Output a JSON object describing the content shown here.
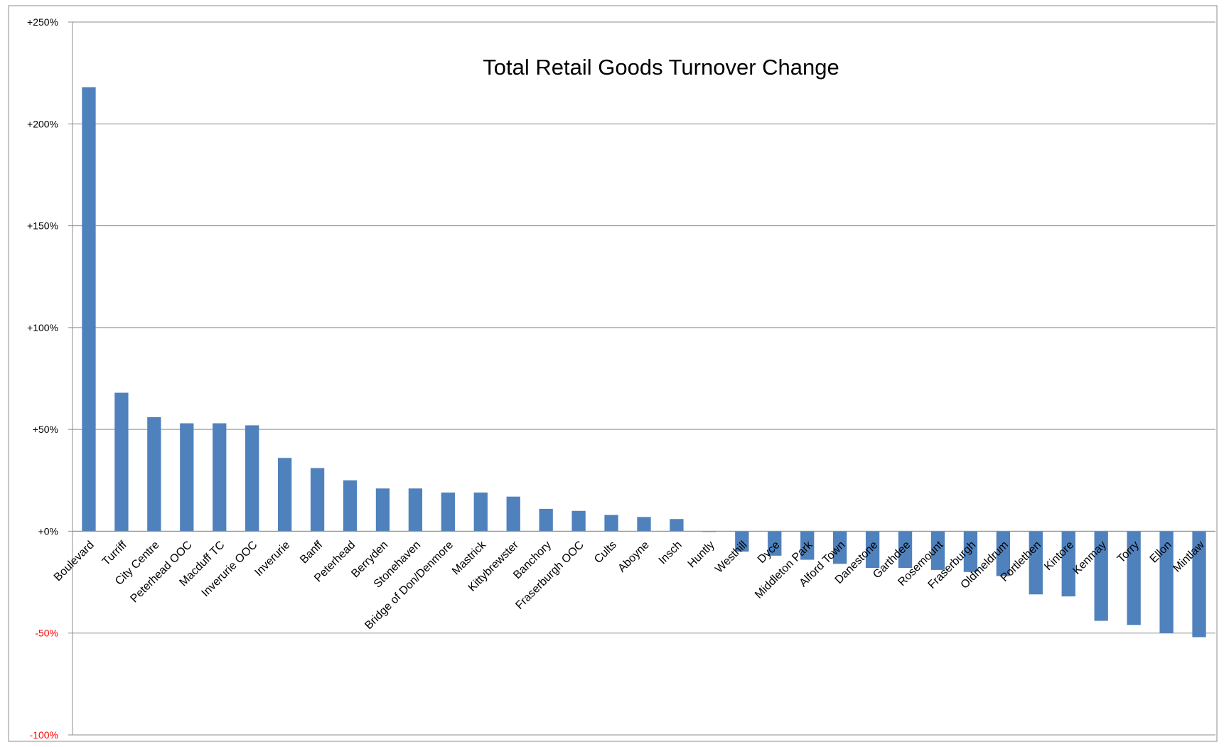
{
  "chart_data": {
    "type": "bar",
    "title": "Total Retail Goods Turnover Change",
    "xlabel": "",
    "ylabel": "",
    "ylim": [
      -100,
      250
    ],
    "yticks": [
      250,
      200,
      150,
      100,
      50,
      0,
      -50,
      -100
    ],
    "ytick_labels": [
      "+250%",
      "+200%",
      "+150%",
      "+100%",
      "+50%",
      "+0%",
      "-50%",
      "-100%"
    ],
    "grid": true,
    "legend": "none",
    "colors": {
      "bar": "#4f81bd",
      "grid": "#8c8c8c",
      "axis": "#8c8c8c",
      "frame": "#8c8c8c",
      "positive_tick": "#000000",
      "negative_tick": "#ff0000"
    },
    "categories": [
      "Boulevard",
      "Turriff",
      "City Centre",
      "Peterhead OOC",
      "Macduff TC",
      "Inverurie OOC",
      "Inverurie",
      "Banff",
      "Peterhead",
      "Berryden",
      "Stonehaven",
      "Bridge of Don/Denmore",
      "Mastrick",
      "Kittybrewster",
      "Banchory",
      "Fraserburgh OOC",
      "Cults",
      "Aboyne",
      "Insch",
      "Huntly",
      "Westhill",
      "Dyce",
      "Middleton Park",
      "Alford Town",
      "Danestone",
      "Garthdee",
      "Rosemount",
      "Fraserburgh",
      "Oldmeldrum",
      "Portlethen",
      "Kintore",
      "Kenmay",
      "Torry",
      "Ellon",
      "Mintlaw"
    ],
    "values": [
      218,
      68,
      56,
      53,
      53,
      52,
      36,
      31,
      25,
      21,
      21,
      19,
      19,
      17,
      11,
      10,
      8,
      7,
      6,
      0,
      -10,
      -12,
      -14,
      -16,
      -18,
      -18,
      -19,
      -20,
      -22,
      -31,
      -32,
      -44,
      -46,
      -50,
      -52
    ]
  }
}
